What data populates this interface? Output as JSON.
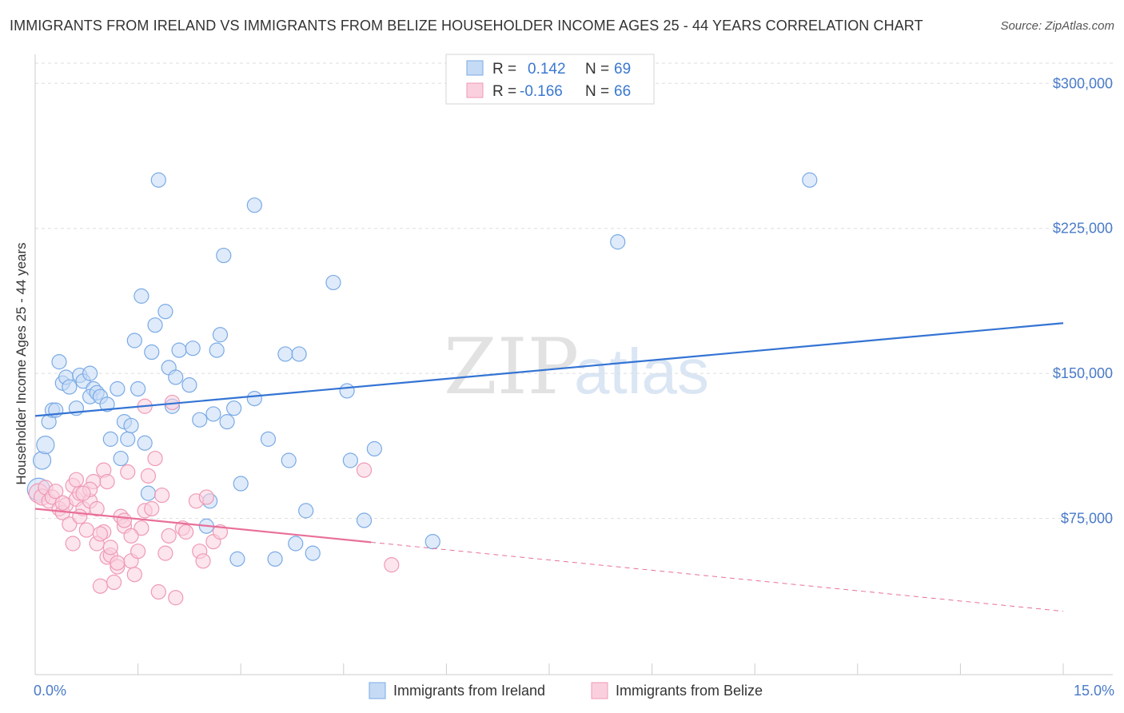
{
  "title": "IMMIGRANTS FROM IRELAND VS IMMIGRANTS FROM BELIZE HOUSEHOLDER INCOME AGES 25 - 44 YEARS CORRELATION CHART",
  "source": "Source: ZipAtlas.com",
  "watermark": {
    "zip": "ZIP",
    "atlas": "atlas"
  },
  "chart_data": {
    "type": "scatter",
    "xlabel": "",
    "ylabel": "Householder Income Ages 25 - 44 years",
    "xlim": [
      0,
      15
    ],
    "ylim": [
      0,
      315000
    ],
    "x_tick_labels": {
      "min": "0.0%",
      "max": "15.0%"
    },
    "y_ticks": [
      {
        "value": 75000,
        "label": "$75,000"
      },
      {
        "value": 150000,
        "label": "$150,000"
      },
      {
        "value": 225000,
        "label": "$225,000"
      },
      {
        "value": 300000,
        "label": "$300,000"
      }
    ],
    "stats_legend": {
      "r_label": "R =",
      "n_label": "N =",
      "rows": [
        {
          "r": "0.142",
          "n": "69"
        },
        {
          "r": "-0.166",
          "n": "66"
        }
      ]
    },
    "series": [
      {
        "name": "Immigrants from Ireland",
        "color": "#7aaae6",
        "fill": "#c5dbf5",
        "line_color": "#3474d4",
        "trend": {
          "x0": 0,
          "y0": 128000,
          "x1": 15,
          "y1": 176000,
          "solid_until": 15
        },
        "points": [
          [
            0.05,
            90000,
            14
          ],
          [
            0.1,
            105000,
            11
          ],
          [
            0.15,
            113000,
            11
          ],
          [
            0.2,
            125000,
            9
          ],
          [
            0.25,
            131000,
            9
          ],
          [
            0.3,
            131000,
            9
          ],
          [
            0.35,
            156000,
            9
          ],
          [
            0.4,
            145000,
            9
          ],
          [
            0.45,
            148000,
            9
          ],
          [
            0.5,
            143000,
            9
          ],
          [
            0.6,
            132000,
            9
          ],
          [
            0.65,
            149000,
            9
          ],
          [
            0.7,
            146000,
            9
          ],
          [
            0.8,
            150000,
            9
          ],
          [
            0.85,
            142000,
            9
          ],
          [
            0.8,
            138000,
            9
          ],
          [
            0.9,
            140000,
            9
          ],
          [
            0.95,
            138000,
            9
          ],
          [
            1.05,
            134000,
            9
          ],
          [
            1.1,
            116000,
            9
          ],
          [
            1.2,
            142000,
            9
          ],
          [
            1.25,
            106000,
            9
          ],
          [
            1.3,
            125000,
            9
          ],
          [
            1.35,
            116000,
            9
          ],
          [
            1.4,
            123000,
            9
          ],
          [
            1.45,
            167000,
            9
          ],
          [
            1.5,
            142000,
            9
          ],
          [
            1.55,
            190000,
            9
          ],
          [
            1.6,
            114000,
            9
          ],
          [
            1.65,
            88000,
            9
          ],
          [
            1.7,
            161000,
            9
          ],
          [
            1.75,
            175000,
            9
          ],
          [
            1.8,
            250000,
            9
          ],
          [
            1.9,
            182000,
            9
          ],
          [
            1.95,
            153000,
            9
          ],
          [
            2.0,
            133000,
            9
          ],
          [
            2.05,
            148000,
            9
          ],
          [
            2.1,
            162000,
            9
          ],
          [
            2.25,
            144000,
            9
          ],
          [
            2.3,
            163000,
            9
          ],
          [
            2.4,
            126000,
            9
          ],
          [
            2.5,
            71000,
            9
          ],
          [
            2.55,
            84000,
            9
          ],
          [
            2.6,
            129000,
            9
          ],
          [
            2.65,
            162000,
            9
          ],
          [
            2.7,
            170000,
            9
          ],
          [
            2.75,
            211000,
            9
          ],
          [
            2.8,
            125000,
            9
          ],
          [
            2.9,
            132000,
            9
          ],
          [
            2.95,
            54000,
            9
          ],
          [
            3.0,
            93000,
            9
          ],
          [
            3.2,
            137000,
            9
          ],
          [
            3.2,
            237000,
            9
          ],
          [
            3.4,
            116000,
            9
          ],
          [
            3.5,
            54000,
            9
          ],
          [
            3.65,
            160000,
            9
          ],
          [
            3.7,
            105000,
            9
          ],
          [
            3.8,
            62000,
            9
          ],
          [
            3.85,
            160000,
            9
          ],
          [
            3.95,
            79000,
            9
          ],
          [
            4.05,
            57000,
            9
          ],
          [
            4.35,
            197000,
            9
          ],
          [
            4.55,
            141000,
            9
          ],
          [
            4.6,
            105000,
            9
          ],
          [
            4.8,
            74000,
            9
          ],
          [
            4.95,
            111000,
            9
          ],
          [
            5.8,
            63000,
            9
          ],
          [
            8.5,
            218000,
            9
          ],
          [
            11.3,
            250000,
            9
          ]
        ]
      },
      {
        "name": "Immigrants from Belize",
        "color": "#ef9ab5",
        "fill": "#fad0de",
        "line_color": "#e8709a",
        "trend": {
          "x0": 0,
          "y0": 80000,
          "x1": 15,
          "y1": 27000,
          "solid_until": 4.9
        },
        "points": [
          [
            0.05,
            88000,
            12
          ],
          [
            0.1,
            86000,
            10
          ],
          [
            0.15,
            91000,
            9
          ],
          [
            0.2,
            84000,
            9
          ],
          [
            0.25,
            86000,
            9
          ],
          [
            0.3,
            89000,
            9
          ],
          [
            0.35,
            80000,
            9
          ],
          [
            0.4,
            78000,
            9
          ],
          [
            0.45,
            82000,
            9
          ],
          [
            0.5,
            72000,
            9
          ],
          [
            0.55,
            92000,
            9
          ],
          [
            0.6,
            85000,
            9
          ],
          [
            0.65,
            88000,
            9
          ],
          [
            0.7,
            80000,
            9
          ],
          [
            0.75,
            69000,
            9
          ],
          [
            0.8,
            84000,
            9
          ],
          [
            0.85,
            94000,
            9
          ],
          [
            0.9,
            80000,
            9
          ],
          [
            0.95,
            40000,
            9
          ],
          [
            1.0,
            68000,
            9
          ],
          [
            1.05,
            55000,
            9
          ],
          [
            1.1,
            56000,
            9
          ],
          [
            1.15,
            42000,
            9
          ],
          [
            1.2,
            50000,
            9
          ],
          [
            1.25,
            76000,
            9
          ],
          [
            1.3,
            71000,
            9
          ],
          [
            1.35,
            99000,
            9
          ],
          [
            1.4,
            53000,
            9
          ],
          [
            1.45,
            46000,
            9
          ],
          [
            1.5,
            58000,
            9
          ],
          [
            1.55,
            70000,
            9
          ],
          [
            1.6,
            79000,
            9
          ],
          [
            1.65,
            97000,
            9
          ],
          [
            1.7,
            80000,
            9
          ],
          [
            1.75,
            106000,
            9
          ],
          [
            1.8,
            37000,
            9
          ],
          [
            1.85,
            87000,
            9
          ],
          [
            1.9,
            57000,
            9
          ],
          [
            1.95,
            66000,
            9
          ],
          [
            2.0,
            135000,
            9
          ],
          [
            2.05,
            34000,
            9
          ],
          [
            2.15,
            70000,
            9
          ],
          [
            2.2,
            68000,
            9
          ],
          [
            2.35,
            84000,
            9
          ],
          [
            2.4,
            58000,
            9
          ],
          [
            2.45,
            53000,
            9
          ],
          [
            2.5,
            86000,
            9
          ],
          [
            2.6,
            63000,
            9
          ],
          [
            2.7,
            68000,
            9
          ],
          [
            4.8,
            100000,
            9
          ],
          [
            5.2,
            51000,
            9
          ],
          [
            1.2,
            52000,
            9
          ],
          [
            1.0,
            100000,
            9
          ],
          [
            0.9,
            62000,
            9
          ],
          [
            0.8,
            90000,
            9
          ],
          [
            0.7,
            88000,
            9
          ],
          [
            0.6,
            95000,
            9
          ],
          [
            1.1,
            60000,
            9
          ],
          [
            1.3,
            74000,
            9
          ],
          [
            0.4,
            83000,
            9
          ],
          [
            1.6,
            133000,
            9
          ],
          [
            0.55,
            62000,
            9
          ],
          [
            0.95,
            67000,
            9
          ],
          [
            0.65,
            76000,
            9
          ],
          [
            1.05,
            94000,
            9
          ],
          [
            1.4,
            66000,
            9
          ]
        ]
      }
    ]
  }
}
